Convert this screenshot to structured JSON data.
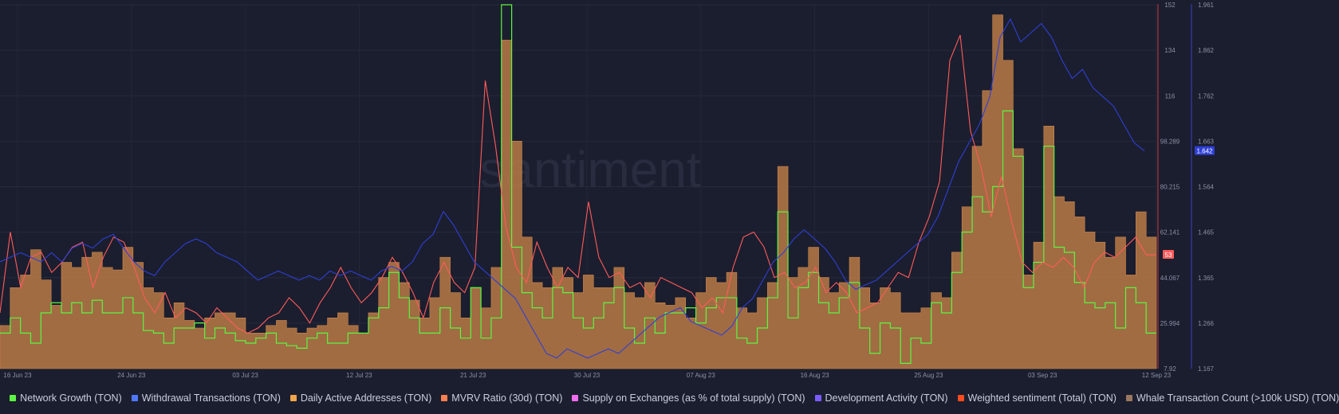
{
  "chart_data": {
    "type": "line",
    "title": "",
    "watermark": "santiment",
    "x_ticks": [
      "16 Jun 23",
      "24 Jun 23",
      "03 Jul 23",
      "12 Jul 23",
      "21 Jul 23",
      "30 Jul 23",
      "07 Aug 23",
      "16 Aug 23",
      "25 Aug 23",
      "03 Sep 23",
      "12 Sep 23"
    ],
    "x_range": [
      "2023-06-12",
      "2023-09-12"
    ],
    "y_left_ticks": [
      "152",
      "134",
      "116",
      "98.289",
      "80.215",
      "62.141",
      "44.067",
      "25.994",
      "7.92"
    ],
    "y_right_ticks": [
      "1.961",
      "1.862",
      "1.762",
      "1.663",
      "1.564",
      "1.465",
      "1.365",
      "1.266",
      "1.167"
    ],
    "left_axis_range": [
      7.92,
      152
    ],
    "right_axis_range": [
      1.167,
      1.961
    ],
    "current_value_badges": [
      {
        "value": "53",
        "color": "#ff5b5b"
      },
      {
        "value": "1.642",
        "color": "#2e3fd6"
      }
    ],
    "grid": true,
    "legend_position": "bottom",
    "legend": [
      {
        "label": ")",
        "color": ""
      },
      {
        "label": "Network Growth (TON)",
        "color": "#5cf542"
      },
      {
        "label": "Withdrawal Transactions (TON)",
        "color": "#4f78ff"
      },
      {
        "label": "Daily Active Addresses (TON)",
        "color": "#f2a54a"
      },
      {
        "label": "MVRV Ratio (30d) (TON)",
        "color": "#ff7f50"
      },
      {
        "label": "Supply on Exchanges (as % of total supply) (TON)",
        "color": "#f06cf0"
      },
      {
        "label": "Development Activity (TON)",
        "color": "#7a5cff"
      },
      {
        "label": "Weighted sentiment (Total) (TON)",
        "color": "#ff4b1f"
      },
      {
        "label": "Whale Transaction Count (>100k USD) (TON)",
        "color": "#9a7860"
      }
    ],
    "series": [
      {
        "name": "Whale Transaction Count (>100k USD) (TON)",
        "axis": "left",
        "color": "#b97a45",
        "values": [
          25,
          40,
          45,
          55,
          43,
          33,
          50,
          48,
          52,
          54,
          48,
          47,
          56,
          50,
          40,
          38,
          28,
          34,
          27,
          24,
          28,
          30,
          30,
          28,
          22,
          22,
          25,
          27,
          24,
          22,
          24,
          25,
          28,
          30,
          25,
          22,
          30,
          44,
          50,
          42,
          35,
          28,
          36,
          52,
          38,
          28,
          40,
          32,
          48,
          138,
          98,
          60,
          42,
          40,
          48,
          44,
          38,
          45,
          40,
          40,
          48,
          38,
          36,
          42,
          34,
          33,
          36,
          28,
          38,
          44,
          42,
          46,
          32,
          30,
          36,
          42,
          88,
          44,
          48,
          56,
          44,
          38,
          42,
          52,
          40,
          34,
          40,
          38,
          30,
          30,
          32,
          38,
          36,
          54,
          72,
          96,
          118,
          148,
          130,
          95,
          45,
          58,
          104,
          76,
          74,
          68,
          62,
          58,
          52,
          60,
          45,
          70,
          60
        ]
      },
      {
        "name": "Network Growth (TON)",
        "axis": "left",
        "color": "#5cf542",
        "values": [
          22,
          28,
          22,
          18,
          30,
          34,
          30,
          34,
          30,
          35,
          30,
          30,
          36,
          30,
          23,
          22,
          18,
          24,
          24,
          26,
          20,
          24,
          22,
          19,
          18,
          20,
          22,
          18,
          17,
          16,
          20,
          22,
          18,
          18,
          22,
          22,
          28,
          32,
          46,
          36,
          28,
          22,
          22,
          32,
          24,
          20,
          40,
          20,
          28,
          152,
          56,
          38,
          32,
          28,
          40,
          38,
          28,
          24,
          28,
          34,
          40,
          24,
          18,
          28,
          22,
          30,
          30,
          32,
          26,
          32,
          36,
          36,
          20,
          18,
          24,
          36,
          70,
          28,
          40,
          46,
          34,
          30,
          36,
          42,
          24,
          14,
          26,
          24,
          10,
          20,
          18,
          34,
          30,
          46,
          62,
          76,
          70,
          80,
          110,
          92,
          40,
          50,
          96,
          56,
          54,
          42,
          34,
          32,
          34,
          24,
          40,
          34,
          22
        ]
      },
      {
        "name": "MVRV Ratio (30d) (TON)",
        "axis": "left",
        "color": "#ff5b5b",
        "values": [
          30,
          62,
          40,
          52,
          54,
          46,
          50,
          56,
          58,
          40,
          52,
          60,
          58,
          48,
          36,
          30,
          38,
          28,
          32,
          30,
          26,
          32,
          28,
          24,
          22,
          24,
          28,
          30,
          36,
          32,
          26,
          34,
          40,
          48,
          40,
          34,
          38,
          44,
          52,
          46,
          38,
          28,
          42,
          50,
          42,
          38,
          48,
          122,
          96,
          64,
          48,
          42,
          58,
          48,
          40,
          48,
          44,
          74,
          52,
          44,
          46,
          40,
          42,
          36,
          44,
          42,
          40,
          38,
          32,
          36,
          30,
          48,
          60,
          62,
          56,
          44,
          46,
          40,
          42,
          48,
          38,
          42,
          38,
          30,
          32,
          34,
          40,
          46,
          44,
          58,
          68,
          82,
          130,
          140,
          102,
          88,
          68,
          84,
          66,
          50,
          46,
          50,
          48,
          52,
          48,
          40,
          50,
          54,
          52,
          56,
          60,
          53,
          53
        ]
      },
      {
        "name": "Withdrawal Transactions (TON)",
        "axis": "right",
        "color": "#2e3fd6",
        "values": [
          1.4,
          1.41,
          1.42,
          1.41,
          1.4,
          1.42,
          1.4,
          1.43,
          1.44,
          1.43,
          1.45,
          1.46,
          1.43,
          1.4,
          1.38,
          1.37,
          1.4,
          1.42,
          1.44,
          1.45,
          1.44,
          1.42,
          1.41,
          1.4,
          1.38,
          1.36,
          1.37,
          1.38,
          1.37,
          1.36,
          1.37,
          1.36,
          1.38,
          1.37,
          1.38,
          1.37,
          1.36,
          1.38,
          1.39,
          1.38,
          1.4,
          1.44,
          1.46,
          1.51,
          1.48,
          1.44,
          1.4,
          1.38,
          1.36,
          1.34,
          1.32,
          1.28,
          1.24,
          1.2,
          1.19,
          1.21,
          1.2,
          1.19,
          1.2,
          1.21,
          1.2,
          1.22,
          1.24,
          1.26,
          1.28,
          1.29,
          1.3,
          1.27,
          1.26,
          1.25,
          1.24,
          1.26,
          1.3,
          1.32,
          1.36,
          1.4,
          1.42,
          1.45,
          1.47,
          1.45,
          1.43,
          1.4,
          1.36,
          1.34,
          1.35,
          1.36,
          1.38,
          1.4,
          1.42,
          1.44,
          1.46,
          1.5,
          1.56,
          1.62,
          1.66,
          1.7,
          1.76,
          1.89,
          1.93,
          1.88,
          1.9,
          1.92,
          1.89,
          1.84,
          1.8,
          1.82,
          1.78,
          1.76,
          1.74,
          1.7,
          1.66,
          1.642
        ]
      }
    ]
  }
}
